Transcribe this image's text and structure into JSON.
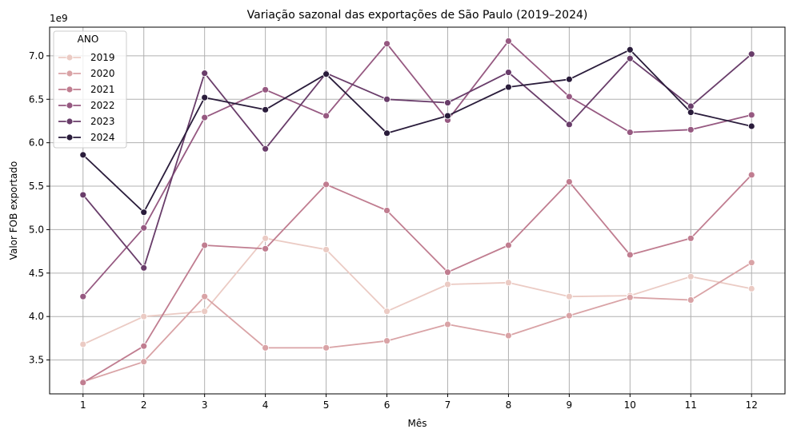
{
  "chart_data": {
    "type": "line",
    "title": "Variação sazonal das exportações de São Paulo (2019–2024)",
    "xlabel": "Mês",
    "ylabel": "Valor FOB exportado",
    "y_multiplier_label": "1e9",
    "x": [
      1,
      2,
      3,
      4,
      5,
      6,
      7,
      8,
      9,
      10,
      11,
      12
    ],
    "x_tick_labels": [
      "1",
      "2",
      "3",
      "4",
      "5",
      "6",
      "7",
      "8",
      "9",
      "10",
      "11",
      "12"
    ],
    "y_ticks": [
      3.5,
      4.0,
      4.5,
      5.0,
      5.5,
      6.0,
      6.5,
      7.0
    ],
    "y_tick_labels": [
      "3.5",
      "4.0",
      "4.5",
      "5.0",
      "5.5",
      "6.0",
      "6.5",
      "7.0"
    ],
    "xlim": [
      0.45,
      12.55
    ],
    "ylim": [
      3.11,
      7.33
    ],
    "grid": true,
    "legend": {
      "title": "ANO",
      "placement": "top-left"
    },
    "series": [
      {
        "name": "2019",
        "color": "#ebcbc4",
        "values": [
          3.68,
          4.0,
          4.06,
          4.9,
          4.77,
          4.06,
          4.37,
          4.39,
          4.23,
          4.24,
          4.46,
          4.32
        ]
      },
      {
        "name": "2020",
        "color": "#d9a3a6",
        "values": [
          3.25,
          3.48,
          4.23,
          3.64,
          3.64,
          3.72,
          3.91,
          3.78,
          4.01,
          4.22,
          4.19,
          4.62
        ]
      },
      {
        "name": "2021",
        "color": "#c07d90",
        "values": [
          3.24,
          3.66,
          4.82,
          4.78,
          5.52,
          5.22,
          4.51,
          4.82,
          5.55,
          4.71,
          4.9,
          5.63
        ]
      },
      {
        "name": "2022",
        "color": "#965981",
        "values": [
          4.23,
          5.02,
          6.29,
          6.61,
          6.31,
          7.14,
          6.26,
          7.17,
          6.53,
          6.12,
          6.15,
          6.32
        ]
      },
      {
        "name": "2023",
        "color": "#693d6a",
        "values": [
          5.4,
          4.56,
          6.8,
          5.93,
          6.8,
          6.5,
          6.46,
          6.81,
          6.21,
          6.97,
          6.42,
          7.02
        ]
      },
      {
        "name": "2024",
        "color": "#2a1c3b",
        "values": [
          5.86,
          5.2,
          6.52,
          6.38,
          6.79,
          6.11,
          6.31,
          6.64,
          6.73,
          7.07,
          6.35,
          6.19
        ]
      }
    ]
  }
}
